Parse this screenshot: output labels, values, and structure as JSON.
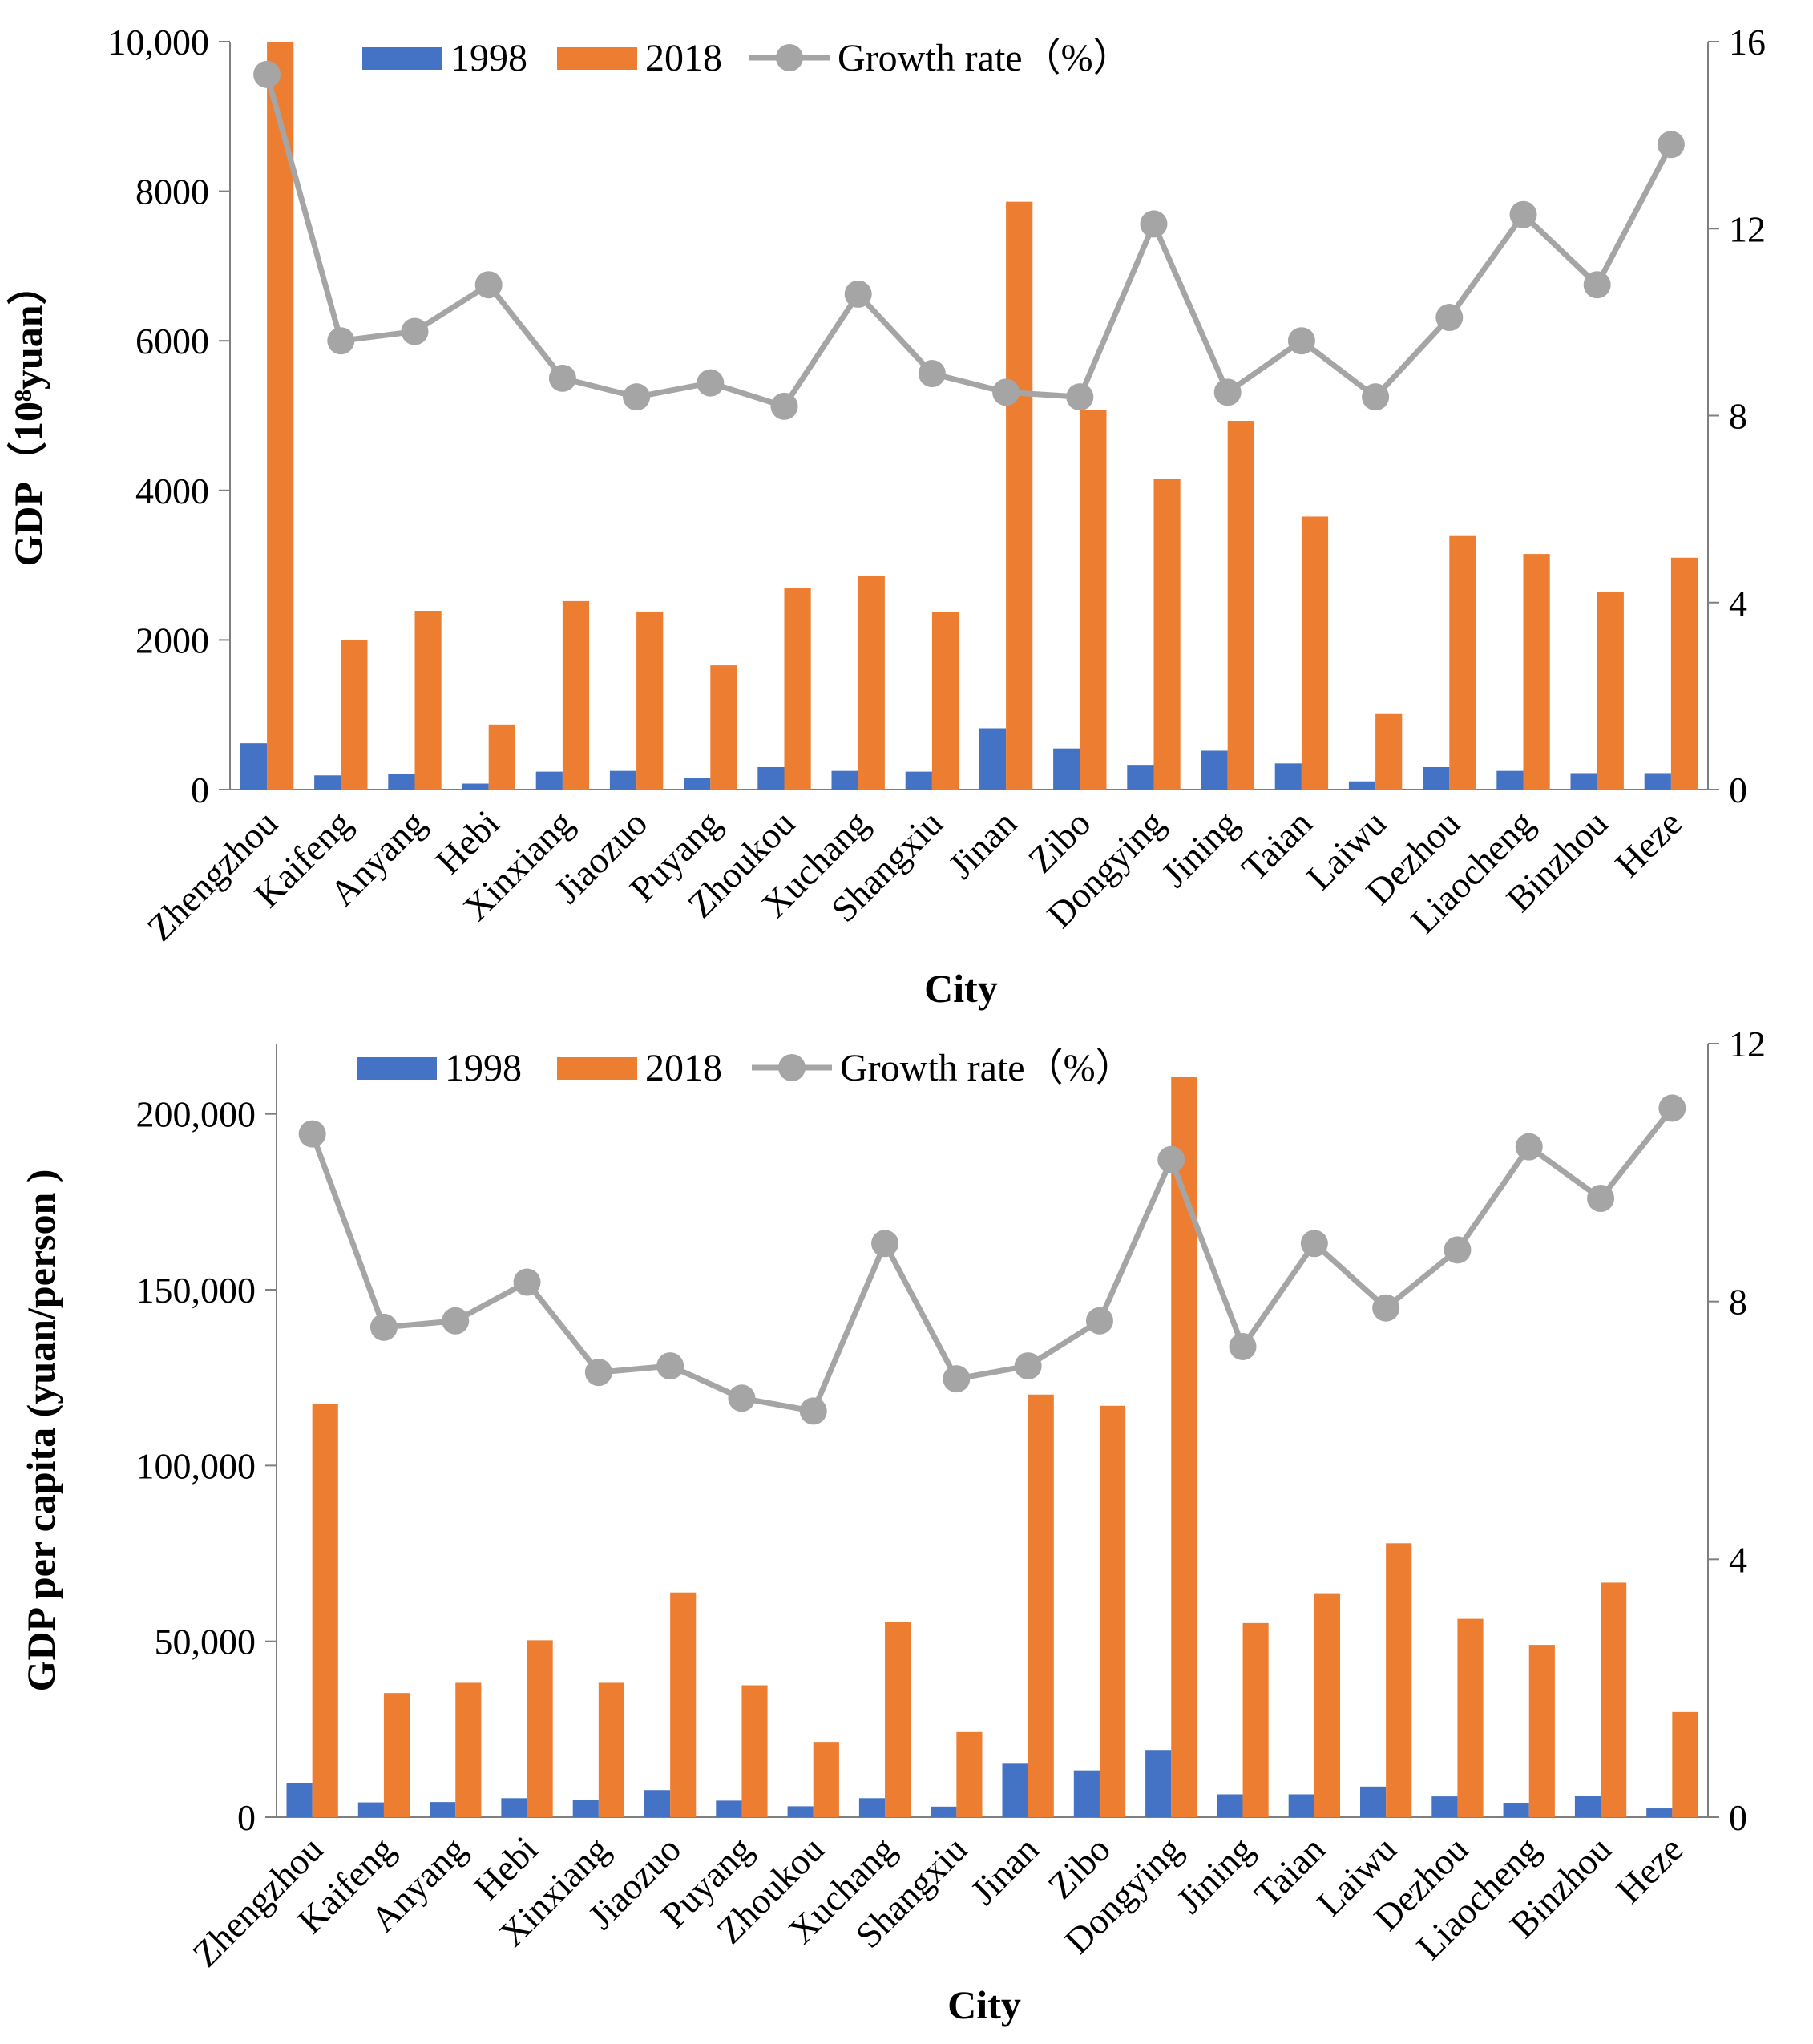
{
  "chart_data": [
    {
      "type": "bar",
      "title": "",
      "xlabel": "City",
      "ylabel": "GDP（10⁸yuan）",
      "y2label": "",
      "ylim": [
        0,
        10000
      ],
      "y2lim": [
        0,
        16
      ],
      "yticks": [
        "0",
        "2000",
        "4000",
        "6000",
        "8000",
        "10,000"
      ],
      "yticks_values": [
        0,
        2000,
        4000,
        6000,
        8000,
        10000
      ],
      "y2ticks": [
        "0",
        "4",
        "8",
        "12",
        "16"
      ],
      "y2ticks_values": [
        0,
        4,
        8,
        12,
        16
      ],
      "legend_position": "top",
      "categories": [
        "Zhengzhou",
        "Kaifeng",
        "Anyang",
        "Hebi",
        "Xinxiang",
        "Jiaozuo",
        "Puyang",
        "Zhoukou",
        "Xuchang",
        "Shangxiu",
        "Jinan",
        "Zibo",
        "Dongying",
        "Jining",
        "Taian",
        "Laiwu",
        "Dezhou",
        "Liaocheng",
        "Binzhou",
        "Heze"
      ],
      "series": [
        {
          "name": "1998",
          "kind": "bar",
          "axis": "left",
          "color": "#4472C4",
          "values": [
            620,
            190,
            210,
            80,
            240,
            250,
            160,
            300,
            250,
            240,
            820,
            550,
            320,
            520,
            350,
            110,
            300,
            250,
            220,
            220
          ]
        },
        {
          "name": "2018",
          "kind": "bar",
          "axis": "left",
          "color": "#ED7D31",
          "values": [
            10140,
            2000,
            2390,
            870,
            2520,
            2380,
            1660,
            2690,
            2860,
            2370,
            7860,
            5070,
            4150,
            4930,
            3650,
            1010,
            3390,
            3150,
            2640,
            3100
          ]
        },
        {
          "name": "Growth rate（%）",
          "kind": "line",
          "axis": "right",
          "color": "#A5A5A5",
          "values": [
            15.3,
            9.6,
            9.8,
            10.8,
            8.8,
            8.4,
            8.7,
            8.2,
            10.6,
            8.9,
            8.5,
            8.4,
            12.1,
            8.5,
            9.6,
            8.4,
            10.1,
            12.3,
            10.8,
            13.8
          ]
        }
      ]
    },
    {
      "type": "bar",
      "title": "",
      "xlabel": "City",
      "ylabel": "GDP per capita (yuan/person )",
      "y2label": "",
      "ylim": [
        0,
        220000
      ],
      "y2lim": [
        0,
        12
      ],
      "yticks": [
        "0",
        "50,000",
        "100,000",
        "150,000",
        "200,000"
      ],
      "yticks_values": [
        0,
        50000,
        100000,
        150000,
        200000
      ],
      "y2ticks": [
        "0",
        "4",
        "8",
        "12"
      ],
      "y2ticks_values": [
        0,
        4,
        8,
        12
      ],
      "legend_position": "top",
      "categories": [
        "Zhengzhou",
        "Kaifeng",
        "Anyang",
        "Hebi",
        "Xinxiang",
        "Jiaozuo",
        "Puyang",
        "Zhoukou",
        "Xuchang",
        "Shangxiu",
        "Jinan",
        "Zibo",
        "Dongying",
        "Jining",
        "Taian",
        "Laiwu",
        "Dezhou",
        "Liaocheng",
        "Binzhou",
        "Heze"
      ],
      "series": [
        {
          "name": "1998",
          "kind": "bar",
          "axis": "left",
          "color": "#4472C4",
          "values": [
            9800,
            4200,
            4300,
            5400,
            4800,
            7700,
            4700,
            3100,
            5400,
            3000,
            15200,
            13300,
            19100,
            6500,
            6500,
            8700,
            5900,
            4100,
            6000,
            2500
          ]
        },
        {
          "name": "2018",
          "kind": "bar",
          "axis": "left",
          "color": "#ED7D31",
          "values": [
            117500,
            35300,
            38200,
            50300,
            38200,
            63900,
            37500,
            21400,
            55400,
            24200,
            120200,
            117000,
            210500,
            55200,
            63700,
            77900,
            56400,
            49000,
            66700,
            29900
          ]
        },
        {
          "name": "Growth rate（%）",
          "kind": "line",
          "axis": "right",
          "color": "#A5A5A5",
          "values": [
            10.6,
            7.6,
            7.7,
            8.3,
            6.9,
            7.0,
            6.5,
            6.3,
            8.9,
            6.8,
            7.0,
            7.7,
            10.2,
            7.3,
            8.9,
            7.9,
            8.8,
            10.4,
            9.6,
            11.0
          ]
        }
      ]
    }
  ]
}
